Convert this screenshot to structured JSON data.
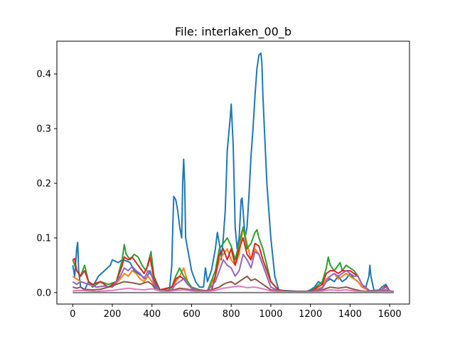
{
  "chart_data": {
    "type": "line",
    "title": "File: interlaken_00_b",
    "xlabel": "",
    "ylabel": "",
    "xlim": [
      -80,
      1700
    ],
    "ylim": [
      -0.021,
      0.46
    ],
    "xticks": [
      0,
      200,
      400,
      600,
      800,
      1000,
      1200,
      1400,
      1600
    ],
    "yticks": [
      0.0,
      0.1,
      0.2,
      0.3,
      0.4
    ],
    "ytick_labels": [
      "0.0",
      "0.1",
      "0.2",
      "0.3",
      "0.4"
    ],
    "grid": false,
    "legend": "none",
    "series": [
      {
        "color": "#1f77b4",
        "x": [
          0,
          10,
          20,
          25,
          30,
          40,
          60,
          80,
          100,
          130,
          160,
          190,
          200,
          210,
          230,
          250,
          270,
          290,
          310,
          330,
          350,
          370,
          390,
          410,
          430,
          460,
          490,
          500,
          505,
          510,
          520,
          530,
          540,
          550,
          555,
          560,
          565,
          570,
          580,
          590,
          600,
          620,
          640,
          660,
          670,
          680,
          700,
          720,
          730,
          740,
          750,
          760,
          770,
          780,
          790,
          795,
          800,
          810,
          820,
          830,
          840,
          850,
          855,
          860,
          870,
          880,
          890,
          900,
          910,
          920,
          930,
          940,
          950,
          955,
          960,
          970,
          980,
          1000,
          1020,
          1040,
          1060,
          1100,
          1150,
          1180,
          1200,
          1220,
          1240,
          1260,
          1280,
          1300,
          1320,
          1340,
          1360,
          1380,
          1400,
          1420,
          1440,
          1460,
          1480,
          1495,
          1500,
          1505,
          1520,
          1540,
          1560,
          1580,
          1600,
          1620
        ],
        "y": [
          0.05,
          0.03,
          0.08,
          0.092,
          0.04,
          0.01,
          0.005,
          0.02,
          0.01,
          0.03,
          0.04,
          0.05,
          0.06,
          0.058,
          0.055,
          0.06,
          0.058,
          0.055,
          0.04,
          0.035,
          0.03,
          0.025,
          0.04,
          0.02,
          0.005,
          0.004,
          0.01,
          0.05,
          0.12,
          0.176,
          0.17,
          0.15,
          0.12,
          0.1,
          0.2,
          0.244,
          0.2,
          0.1,
          0.08,
          0.06,
          0.04,
          0.02,
          0.01,
          0.01,
          0.045,
          0.02,
          0.04,
          0.08,
          0.11,
          0.09,
          0.06,
          0.1,
          0.15,
          0.26,
          0.3,
          0.32,
          0.345,
          0.27,
          0.12,
          0.08,
          0.1,
          0.17,
          0.173,
          0.15,
          0.1,
          0.12,
          0.18,
          0.25,
          0.3,
          0.36,
          0.41,
          0.435,
          0.438,
          0.42,
          0.36,
          0.28,
          0.2,
          0.1,
          0.03,
          0.005,
          0.004,
          0.003,
          0.002,
          0.002,
          0.005,
          0.01,
          0.02,
          0.015,
          0.02,
          0.025,
          0.02,
          0.03,
          0.02,
          0.025,
          0.035,
          0.025,
          0.02,
          0.01,
          0.01,
          0.03,
          0.05,
          0.03,
          0.005,
          0.002,
          0.01,
          0.015,
          0.003,
          0.002
        ]
      },
      {
        "color": "#ff7f0e",
        "x": [
          0,
          20,
          40,
          80,
          120,
          160,
          200,
          240,
          260,
          280,
          300,
          320,
          340,
          360,
          380,
          400,
          420,
          460,
          500,
          520,
          540,
          560,
          580,
          600,
          640,
          680,
          720,
          740,
          760,
          780,
          800,
          820,
          840,
          860,
          880,
          900,
          920,
          940,
          960,
          1000,
          1040,
          1100,
          1200,
          1260,
          1280,
          1300,
          1320,
          1340,
          1360,
          1380,
          1400,
          1420,
          1440,
          1460,
          1500,
          1560,
          1580,
          1600,
          1620
        ],
        "y": [
          0.03,
          0.025,
          0.02,
          0.015,
          0.01,
          0.012,
          0.01,
          0.025,
          0.035,
          0.03,
          0.04,
          0.035,
          0.025,
          0.02,
          0.03,
          0.02,
          0.005,
          0.003,
          0.005,
          0.02,
          0.03,
          0.045,
          0.02,
          0.01,
          0.005,
          0.003,
          0.03,
          0.06,
          0.07,
          0.08,
          0.06,
          0.05,
          0.07,
          0.12,
          0.09,
          0.06,
          0.08,
          0.07,
          0.05,
          0.01,
          0.003,
          0.002,
          0.002,
          0.01,
          0.025,
          0.03,
          0.035,
          0.025,
          0.03,
          0.035,
          0.03,
          0.025,
          0.02,
          0.01,
          0.003,
          0.005,
          0.01,
          0.003,
          0.002
        ]
      },
      {
        "color": "#2ca02c",
        "x": [
          0,
          20,
          40,
          60,
          80,
          100,
          140,
          180,
          220,
          250,
          260,
          270,
          290,
          310,
          330,
          350,
          370,
          385,
          395,
          410,
          440,
          480,
          500,
          520,
          540,
          560,
          580,
          600,
          640,
          680,
          720,
          740,
          760,
          780,
          800,
          820,
          840,
          860,
          870,
          880,
          900,
          920,
          930,
          940,
          960,
          980,
          1000,
          1040,
          1100,
          1200,
          1260,
          1280,
          1290,
          1300,
          1320,
          1340,
          1350,
          1360,
          1380,
          1400,
          1420,
          1440,
          1460,
          1500,
          1560,
          1580,
          1600,
          1620
        ],
        "y": [
          0.06,
          0.04,
          0.03,
          0.05,
          0.02,
          0.01,
          0.02,
          0.015,
          0.02,
          0.06,
          0.088,
          0.07,
          0.06,
          0.07,
          0.065,
          0.05,
          0.04,
          0.06,
          0.075,
          0.03,
          0.005,
          0.004,
          0.01,
          0.03,
          0.045,
          0.03,
          0.02,
          0.01,
          0.005,
          0.003,
          0.04,
          0.08,
          0.09,
          0.1,
          0.085,
          0.06,
          0.09,
          0.12,
          0.1,
          0.08,
          0.09,
          0.11,
          0.115,
          0.1,
          0.08,
          0.05,
          0.02,
          0.004,
          0.002,
          0.002,
          0.02,
          0.045,
          0.065,
          0.05,
          0.04,
          0.05,
          0.055,
          0.04,
          0.05,
          0.045,
          0.04,
          0.03,
          0.015,
          0.003,
          0.005,
          0.012,
          0.003,
          0.002
        ]
      },
      {
        "color": "#d62728",
        "x": [
          0,
          10,
          20,
          40,
          60,
          80,
          100,
          140,
          180,
          220,
          250,
          260,
          280,
          300,
          320,
          340,
          360,
          380,
          390,
          410,
          440,
          500,
          520,
          540,
          560,
          580,
          600,
          640,
          700,
          720,
          740,
          760,
          780,
          800,
          820,
          840,
          860,
          880,
          900,
          920,
          940,
          960,
          1000,
          1040,
          1100,
          1200,
          1260,
          1280,
          1300,
          1320,
          1340,
          1360,
          1380,
          1400,
          1420,
          1440,
          1460,
          1500,
          1560,
          1580,
          1600,
          1620
        ],
        "y": [
          0.06,
          0.062,
          0.04,
          0.03,
          0.04,
          0.02,
          0.015,
          0.02,
          0.01,
          0.02,
          0.05,
          0.065,
          0.06,
          0.065,
          0.055,
          0.045,
          0.035,
          0.05,
          0.065,
          0.025,
          0.005,
          0.01,
          0.025,
          0.03,
          0.025,
          0.015,
          0.008,
          0.004,
          0.003,
          0.03,
          0.07,
          0.08,
          0.06,
          0.08,
          0.05,
          0.08,
          0.1,
          0.07,
          0.06,
          0.09,
          0.085,
          0.06,
          0.02,
          0.004,
          0.002,
          0.002,
          0.015,
          0.035,
          0.04,
          0.04,
          0.035,
          0.04,
          0.04,
          0.04,
          0.035,
          0.03,
          0.015,
          0.003,
          0.005,
          0.012,
          0.003,
          0.002
        ]
      },
      {
        "color": "#9467bd",
        "x": [
          0,
          20,
          40,
          80,
          120,
          160,
          200,
          240,
          260,
          280,
          300,
          320,
          340,
          360,
          380,
          400,
          420,
          460,
          500,
          520,
          540,
          560,
          580,
          600,
          640,
          680,
          720,
          740,
          760,
          780,
          800,
          820,
          840,
          860,
          880,
          900,
          920,
          940,
          960,
          1000,
          1040,
          1100,
          1200,
          1260,
          1280,
          1300,
          1320,
          1340,
          1360,
          1380,
          1400,
          1420,
          1440,
          1460,
          1500,
          1560,
          1580,
          1600,
          1620
        ],
        "y": [
          0.02,
          0.015,
          0.02,
          0.015,
          0.01,
          0.012,
          0.01,
          0.03,
          0.045,
          0.04,
          0.048,
          0.04,
          0.035,
          0.025,
          0.04,
          0.03,
          0.005,
          0.003,
          0.005,
          0.015,
          0.02,
          0.025,
          0.015,
          0.008,
          0.004,
          0.003,
          0.02,
          0.04,
          0.06,
          0.05,
          0.045,
          0.03,
          0.04,
          0.07,
          0.06,
          0.045,
          0.075,
          0.07,
          0.05,
          0.01,
          0.003,
          0.002,
          0.002,
          0.008,
          0.02,
          0.03,
          0.035,
          0.03,
          0.035,
          0.04,
          0.035,
          0.03,
          0.03,
          0.015,
          0.003,
          0.005,
          0.01,
          0.003,
          0.002
        ]
      },
      {
        "color": "#8c564b",
        "x": [
          0,
          20,
          40,
          60,
          100,
          140,
          180,
          220,
          260,
          300,
          340,
          380,
          400,
          420,
          460,
          500,
          540,
          580,
          620,
          660,
          700,
          740,
          760,
          780,
          800,
          820,
          840,
          860,
          880,
          900,
          920,
          940,
          960,
          1000,
          1040,
          1100,
          1200,
          1260,
          1300,
          1340,
          1380,
          1420,
          1460,
          1500,
          1560,
          1580,
          1600,
          1620
        ],
        "y": [
          0.01,
          0.008,
          0.01,
          0.006,
          0.005,
          0.006,
          0.01,
          0.015,
          0.02,
          0.018,
          0.015,
          0.02,
          0.015,
          0.005,
          0.003,
          0.004,
          0.008,
          0.006,
          0.004,
          0.003,
          0.005,
          0.01,
          0.015,
          0.018,
          0.02,
          0.015,
          0.02,
          0.025,
          0.03,
          0.022,
          0.025,
          0.02,
          0.015,
          0.005,
          0.003,
          0.002,
          0.002,
          0.005,
          0.01,
          0.008,
          0.01,
          0.006,
          0.003,
          0.002,
          0.003,
          0.005,
          0.002,
          0.002
        ]
      },
      {
        "color": "#e377c2",
        "x": [
          0,
          40,
          80,
          120,
          160,
          200,
          240,
          280,
          320,
          360,
          400,
          440,
          480,
          520,
          560,
          600,
          640,
          680,
          720,
          760,
          800,
          840,
          880,
          920,
          960,
          1000,
          1040,
          1100,
          1200,
          1260,
          1300,
          1340,
          1380,
          1420,
          1460,
          1500,
          1560,
          1600,
          1620
        ],
        "y": [
          0.003,
          0.004,
          0.003,
          0.002,
          0.003,
          0.004,
          0.006,
          0.008,
          0.006,
          0.005,
          0.007,
          0.003,
          0.002,
          0.004,
          0.005,
          0.003,
          0.002,
          0.002,
          0.004,
          0.008,
          0.01,
          0.012,
          0.009,
          0.01,
          0.007,
          0.003,
          0.002,
          0.001,
          0.001,
          0.003,
          0.005,
          0.004,
          0.005,
          0.003,
          0.002,
          0.001,
          0.002,
          0.002,
          0.001
        ]
      },
      {
        "color": "#7f7f7f",
        "x": [
          0,
          1620
        ],
        "y": [
          0.0,
          0.0
        ]
      }
    ]
  }
}
